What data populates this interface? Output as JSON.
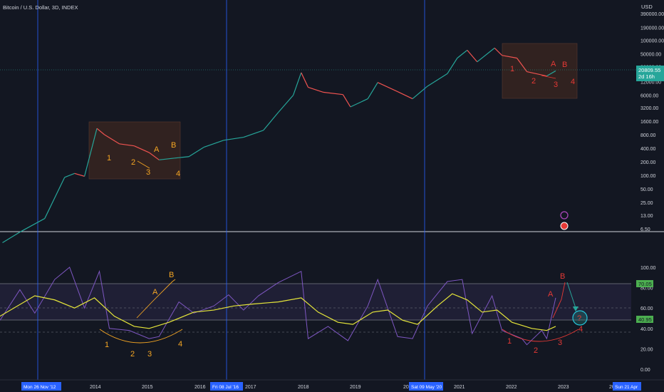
{
  "title": "Bitcoin / U.S. Dollar, 3D, INDEX",
  "currency": "USD",
  "price_badge": {
    "price": "20809.55",
    "countdown": "2d 16h",
    "color": "#26a69a"
  },
  "price_axis_labels": [
    "390000.00",
    "190000.00",
    "100000.00",
    "50000.00",
    "26000.00",
    "12000.00",
    "6000.00",
    "3200.00",
    "1600.00",
    "800.00",
    "400.00",
    "200.00",
    "100.00",
    "50.00",
    "25.00",
    "13.00",
    "6.50"
  ],
  "rsi_axis_labels": [
    "100.00",
    "80.00",
    "60.00",
    "40.00",
    "20.00",
    "0.00"
  ],
  "rsi_badges": [
    {
      "text": "70.05",
      "color": "#4caf50"
    },
    {
      "text": "40.95",
      "color": "#4caf50"
    }
  ],
  "year_labels": [
    "2014",
    "2015",
    "2016",
    "2017",
    "2018",
    "2019",
    "2021",
    "2022",
    "2023"
  ],
  "time_badges": [
    "Mon 26 Nov '12",
    "Fri 08 Jul '16",
    "Sat 09 May '20",
    "Sun 21 Apr"
  ],
  "partial_year_labels": [
    "202",
    "20"
  ],
  "annotations": {
    "top_2014": [
      "1",
      "2",
      "3",
      "A",
      "B",
      "4"
    ],
    "top_2022": [
      "1",
      "2",
      "3",
      "A",
      "B",
      "4"
    ],
    "rsi_2014": [
      "1",
      "2",
      "3",
      "A",
      "B",
      "4"
    ],
    "rsi_2022": [
      "1",
      "2",
      "3",
      "A",
      "B",
      "4"
    ],
    "question": "?"
  },
  "colors": {
    "background": "#131722",
    "candle_up": "#26a69a",
    "candle_down": "#ef5350",
    "halving_line": "#2962ff",
    "rsi_line": "#7e57c2",
    "rsi_ma": "#e6e63a",
    "box_fill": "#3a2620",
    "annotation_orange": "#f5a623",
    "annotation_red": "#e53935"
  },
  "chart_data": {
    "type": "line",
    "title": "",
    "series": [
      {
        "values": [
          [
            2011.95,
            3.2
          ],
          [
            2012.3,
            5.5
          ],
          [
            2012.8,
            11
          ],
          [
            2013.2,
            90
          ],
          [
            2013.4,
            110
          ],
          [
            2013.6,
            95
          ],
          [
            2013.85,
            1100
          ],
          [
            2014.0,
            800
          ],
          [
            2014.3,
            500
          ],
          [
            2014.6,
            450
          ],
          [
            2014.9,
            320
          ],
          [
            2015.1,
            220
          ],
          [
            2015.4,
            240
          ],
          [
            2015.7,
            260
          ],
          [
            2016.0,
            420
          ],
          [
            2016.4,
            600
          ],
          [
            2016.8,
            700
          ],
          [
            2017.2,
            1000
          ],
          [
            2017.5,
            2500
          ],
          [
            2017.8,
            6000
          ],
          [
            2017.96,
            19000
          ],
          [
            2018.1,
            9000
          ],
          [
            2018.4,
            7000
          ],
          [
            2018.8,
            6200
          ],
          [
            2018.95,
            3300
          ],
          [
            2019.3,
            5000
          ],
          [
            2019.5,
            11500
          ],
          [
            2019.9,
            7200
          ],
          [
            2020.2,
            5000
          ],
          [
            2020.5,
            9500
          ],
          [
            2020.9,
            18000
          ],
          [
            2021.1,
            40000
          ],
          [
            2021.3,
            60000
          ],
          [
            2021.5,
            33000
          ],
          [
            2021.85,
            67000
          ],
          [
            2022.0,
            46000
          ],
          [
            2022.3,
            40000
          ],
          [
            2022.5,
            20000
          ],
          [
            2022.9,
            16000
          ],
          [
            2023.08,
            20809.55
          ]
        ]
      }
    ],
    "xlim": [
      2011.9,
      2024.6
    ],
    "ylog": true,
    "annotation_boxes": [
      {
        "x_range": [
          2013.85,
          2015.7
        ],
        "y_range": [
          110,
          1600
        ]
      },
      {
        "x_range": [
          2021.85,
          2023.3
        ],
        "y_range": [
          5000,
          80000
        ]
      }
    ],
    "rsi_chart": {
      "type": "line",
      "ylim": [
        0,
        100
      ],
      "bands": [
        40.95,
        70.05
      ],
      "dashed_levels": [
        30,
        50
      ],
      "rsi_series": {
        "values": [
          [
            2011.9,
            48
          ],
          [
            2012.3,
            78
          ],
          [
            2012.6,
            55
          ],
          [
            2013.0,
            88
          ],
          [
            2013.3,
            100
          ],
          [
            2013.6,
            60
          ],
          [
            2013.9,
            96
          ],
          [
            2014.1,
            40
          ],
          [
            2014.5,
            38
          ],
          [
            2014.9,
            30
          ],
          [
            2015.1,
            32
          ],
          [
            2015.5,
            66
          ],
          [
            2015.8,
            55
          ],
          [
            2016.2,
            62
          ],
          [
            2016.5,
            73
          ],
          [
            2016.8,
            58
          ],
          [
            2017.1,
            72
          ],
          [
            2017.5,
            85
          ],
          [
            2017.96,
            96
          ],
          [
            2018.1,
            30
          ],
          [
            2018.5,
            42
          ],
          [
            2018.9,
            28
          ],
          [
            2019.3,
            62
          ],
          [
            2019.5,
            88
          ],
          [
            2019.9,
            32
          ],
          [
            2020.2,
            30
          ],
          [
            2020.5,
            62
          ],
          [
            2020.9,
            86
          ],
          [
            2021.2,
            88
          ],
          [
            2021.4,
            35
          ],
          [
            2021.8,
            72
          ],
          [
            2022.0,
            38
          ],
          [
            2022.4,
            30
          ],
          [
            2022.5,
            24
          ],
          [
            2022.8,
            38
          ],
          [
            2022.9,
            30
          ],
          [
            2023.08,
            70
          ]
        ]
      },
      "ma_series": {
        "values": [
          [
            2011.9,
            52
          ],
          [
            2012.6,
            72
          ],
          [
            2013.0,
            68
          ],
          [
            2013.4,
            60
          ],
          [
            2013.8,
            70
          ],
          [
            2014.2,
            52
          ],
          [
            2014.6,
            42
          ],
          [
            2014.9,
            40
          ],
          [
            2015.3,
            46
          ],
          [
            2015.8,
            56
          ],
          [
            2016.2,
            58
          ],
          [
            2016.6,
            62
          ],
          [
            2017.0,
            64
          ],
          [
            2017.5,
            66
          ],
          [
            2017.96,
            70
          ],
          [
            2018.3,
            56
          ],
          [
            2018.7,
            46
          ],
          [
            2019.0,
            44
          ],
          [
            2019.4,
            56
          ],
          [
            2019.7,
            58
          ],
          [
            2020.0,
            48
          ],
          [
            2020.3,
            44
          ],
          [
            2020.7,
            62
          ],
          [
            2021.0,
            74
          ],
          [
            2021.3,
            68
          ],
          [
            2021.6,
            56
          ],
          [
            2021.9,
            58
          ],
          [
            2022.2,
            46
          ],
          [
            2022.6,
            40
          ],
          [
            2022.9,
            38
          ],
          [
            2023.08,
            42
          ]
        ]
      }
    }
  }
}
